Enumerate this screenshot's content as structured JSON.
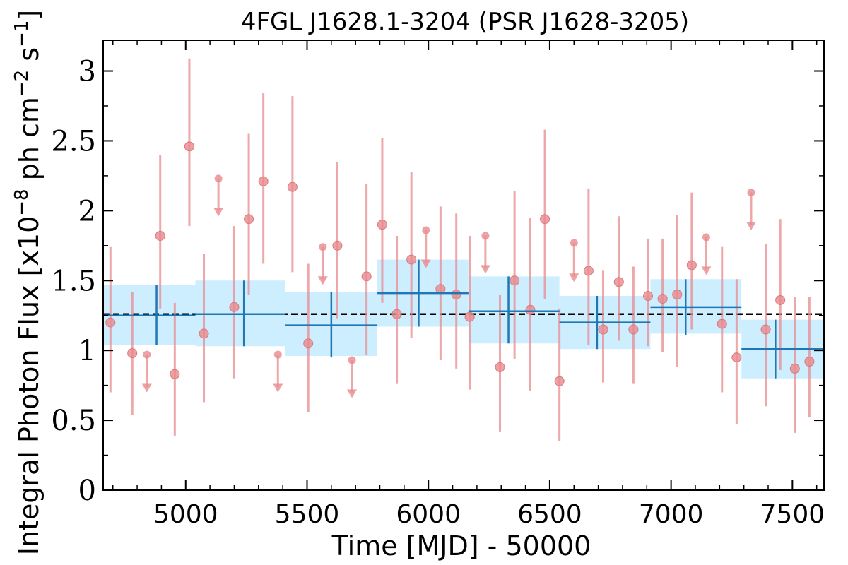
{
  "chart_data": {
    "type": "scatter",
    "title": "4FGL J1628.1-3204 (PSR J1628-3205)",
    "xlabel": "Time [MJD] - 50000",
    "ylabel": "Integral Photon Flux [x10^-8 ph cm^-2 s^-1]",
    "ylabel_parts": {
      "prefix": "Integral Photon Flux [x10",
      "exp1": "−8",
      "mid": " ph cm",
      "exp2": "−2",
      "mid2": " s",
      "exp3": "−1",
      "suffix": "]"
    },
    "xlim": [
      4660,
      7630
    ],
    "ylim": [
      0,
      3.22
    ],
    "xticks": [
      5000,
      5500,
      6000,
      6500,
      7000,
      7500
    ],
    "xtick_labels": [
      "5000",
      "5500",
      "6000",
      "6500",
      "7000",
      "7500"
    ],
    "yticks": [
      0,
      0.5,
      1,
      1.5,
      2,
      2.5,
      3
    ],
    "ytick_labels": [
      "0",
      "0.5",
      "1",
      "1.5",
      "2",
      "2.5",
      "3"
    ],
    "grid": false,
    "average_flux": 1.26,
    "colors": {
      "points": "#e8898d",
      "bins": "#1f77b4",
      "bin_band": "#cdeeff",
      "average_line": "#000000"
    },
    "series": [
      {
        "kind": "detections",
        "points": [
          {
            "x": 4690,
            "y": 1.2,
            "lo": 0.7,
            "hi": 1.74
          },
          {
            "x": 4780,
            "y": 0.98,
            "lo": 0.54,
            "hi": 1.42
          },
          {
            "x": 4895,
            "y": 1.82,
            "lo": 1.3,
            "hi": 2.4
          },
          {
            "x": 4955,
            "y": 0.83,
            "lo": 0.39,
            "hi": 1.34
          },
          {
            "x": 5015,
            "y": 2.46,
            "lo": 1.89,
            "hi": 3.09
          },
          {
            "x": 5075,
            "y": 1.12,
            "lo": 0.63,
            "hi": 1.69
          },
          {
            "x": 5200,
            "y": 1.31,
            "lo": 0.8,
            "hi": 1.89
          },
          {
            "x": 5260,
            "y": 1.94,
            "lo": 1.4,
            "hi": 2.55
          },
          {
            "x": 5320,
            "y": 2.21,
            "lo": 1.62,
            "hi": 2.84
          },
          {
            "x": 5440,
            "y": 2.17,
            "lo": 1.56,
            "hi": 2.82
          },
          {
            "x": 5505,
            "y": 1.05,
            "lo": 0.56,
            "hi": 1.62
          },
          {
            "x": 5625,
            "y": 1.75,
            "lo": 1.23,
            "hi": 2.35
          },
          {
            "x": 5745,
            "y": 1.53,
            "lo": 0.97,
            "hi": 2.19
          },
          {
            "x": 5810,
            "y": 1.9,
            "lo": 1.34,
            "hi": 2.52
          },
          {
            "x": 5870,
            "y": 1.26,
            "lo": 0.76,
            "hi": 1.82
          },
          {
            "x": 5930,
            "y": 1.65,
            "lo": 1.09,
            "hi": 2.28
          },
          {
            "x": 6050,
            "y": 1.44,
            "lo": 0.93,
            "hi": 2.03
          },
          {
            "x": 6115,
            "y": 1.4,
            "lo": 0.87,
            "hi": 1.98
          },
          {
            "x": 6170,
            "y": 1.24,
            "lo": 0.72,
            "hi": 1.82
          },
          {
            "x": 6295,
            "y": 0.88,
            "lo": 0.42,
            "hi": 1.4
          },
          {
            "x": 6355,
            "y": 1.5,
            "lo": 0.94,
            "hi": 2.14
          },
          {
            "x": 6420,
            "y": 1.29,
            "lo": 0.71,
            "hi": 1.95
          },
          {
            "x": 6480,
            "y": 1.94,
            "lo": 1.37,
            "hi": 2.58
          },
          {
            "x": 6540,
            "y": 0.78,
            "lo": 0.35,
            "hi": 1.3
          },
          {
            "x": 6660,
            "y": 1.57,
            "lo": 1.04,
            "hi": 2.16
          },
          {
            "x": 6720,
            "y": 1.15,
            "lo": 0.77,
            "hi": 1.57
          },
          {
            "x": 6785,
            "y": 1.49,
            "lo": 1.07,
            "hi": 1.96
          },
          {
            "x": 6845,
            "y": 1.15,
            "lo": 0.76,
            "hi": 1.6
          },
          {
            "x": 6905,
            "y": 1.39,
            "lo": 1.03,
            "hi": 1.8
          },
          {
            "x": 6965,
            "y": 1.37,
            "lo": 0.99,
            "hi": 1.8
          },
          {
            "x": 7025,
            "y": 1.4,
            "lo": 0.88,
            "hi": 1.97
          },
          {
            "x": 7085,
            "y": 1.61,
            "lo": 1.15,
            "hi": 2.13
          },
          {
            "x": 7210,
            "y": 1.19,
            "lo": 0.7,
            "hi": 1.74
          },
          {
            "x": 7270,
            "y": 0.95,
            "lo": 0.47,
            "hi": 1.51
          },
          {
            "x": 7390,
            "y": 1.15,
            "lo": 0.6,
            "hi": 1.76
          },
          {
            "x": 7450,
            "y": 1.36,
            "lo": 0.86,
            "hi": 1.94
          },
          {
            "x": 7510,
            "y": 0.87,
            "lo": 0.41,
            "hi": 1.38
          },
          {
            "x": 7570,
            "y": 0.92,
            "lo": 0.52,
            "hi": 1.38
          }
        ]
      },
      {
        "kind": "upper_limits",
        "points": [
          {
            "x": 4840,
            "y": 0.97,
            "to": 0.7
          },
          {
            "x": 5135,
            "y": 2.23,
            "to": 1.96
          },
          {
            "x": 5380,
            "y": 0.97,
            "to": 0.7
          },
          {
            "x": 5565,
            "y": 1.74,
            "to": 1.47
          },
          {
            "x": 5685,
            "y": 0.93,
            "to": 0.66
          },
          {
            "x": 5990,
            "y": 1.86,
            "to": 1.59
          },
          {
            "x": 6235,
            "y": 1.82,
            "to": 1.55
          },
          {
            "x": 6600,
            "y": 1.77,
            "to": 1.49
          },
          {
            "x": 7145,
            "y": 1.81,
            "to": 1.54
          },
          {
            "x": 7330,
            "y": 2.13,
            "to": 1.86
          }
        ]
      },
      {
        "kind": "binned",
        "bins": [
          {
            "x0": 4660,
            "x1": 5040,
            "xc": 4880,
            "y": 1.25,
            "ylo": 1.04,
            "yhi": 1.47,
            "bandlo": 1.04,
            "bandhi": 1.47
          },
          {
            "x0": 5040,
            "x1": 5410,
            "xc": 5240,
            "y": 1.26,
            "ylo": 1.03,
            "yhi": 1.5,
            "bandlo": 1.03,
            "bandhi": 1.5
          },
          {
            "x0": 5410,
            "x1": 5790,
            "xc": 5600,
            "y": 1.18,
            "ylo": 0.95,
            "yhi": 1.42,
            "bandlo": 0.96,
            "bandhi": 1.42
          },
          {
            "x0": 5790,
            "x1": 6165,
            "xc": 5960,
            "y": 1.41,
            "ylo": 1.17,
            "yhi": 1.65,
            "bandlo": 1.17,
            "bandhi": 1.65
          },
          {
            "x0": 6165,
            "x1": 6540,
            "xc": 6330,
            "y": 1.28,
            "ylo": 1.05,
            "yhi": 1.53,
            "bandlo": 1.05,
            "bandhi": 1.53
          },
          {
            "x0": 6540,
            "x1": 6915,
            "xc": 6695,
            "y": 1.2,
            "ylo": 1.01,
            "yhi": 1.39,
            "bandlo": 1.01,
            "bandhi": 1.39
          },
          {
            "x0": 6915,
            "x1": 7290,
            "xc": 7060,
            "y": 1.31,
            "ylo": 1.11,
            "yhi": 1.51,
            "bandlo": 1.12,
            "bandhi": 1.51
          },
          {
            "x0": 7290,
            "x1": 7630,
            "xc": 7430,
            "y": 1.01,
            "ylo": 0.8,
            "yhi": 1.22,
            "bandlo": 0.8,
            "bandhi": 1.22
          }
        ]
      }
    ]
  }
}
